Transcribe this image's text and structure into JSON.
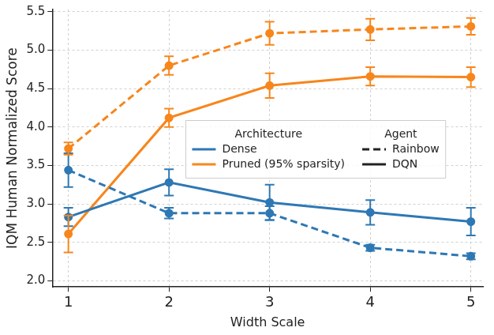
{
  "chart_data": {
    "type": "line",
    "x_label": "Width Scale",
    "y_label": "IQM Human Normalized Score",
    "x": [
      1,
      2,
      3,
      4,
      5
    ],
    "xlim": [
      0.84,
      5.12
    ],
    "xticks": [
      1,
      2,
      3,
      4,
      5
    ],
    "ylim": [
      1.92,
      5.53
    ],
    "yticks": [
      {
        "value": 2,
        "label": "2.0"
      },
      {
        "value": 2.5,
        "label": "2.5"
      },
      {
        "value": 3,
        "label": "3.0"
      },
      {
        "value": 3.5,
        "label": "3.5"
      },
      {
        "value": 4,
        "label": "4.0"
      },
      {
        "value": 4.5,
        "label": "4.5"
      },
      {
        "value": 5,
        "label": "5.0"
      },
      {
        "value": 5.5,
        "label": "5.5"
      }
    ],
    "grid": true,
    "legend": "center",
    "legend_titles": {
      "architecture": "Architecture",
      "agent": "Agent"
    },
    "series": [
      {
        "architecture": "Dense",
        "agent": "Rainbow",
        "color": "#2e78b4",
        "line_style": "dashed",
        "marker": "circle",
        "values": [
          3.44,
          2.88,
          2.88,
          2.43,
          2.32
        ],
        "errors": [
          0.22,
          0.07,
          0.09,
          0.04,
          0.04
        ]
      },
      {
        "architecture": "Dense",
        "agent": "DQN",
        "color": "#2e78b4",
        "line_style": "solid",
        "marker": "circle",
        "values": [
          2.83,
          3.28,
          3.02,
          2.89,
          2.77
        ],
        "errors": [
          0.12,
          0.17,
          0.23,
          0.16,
          0.18
        ]
      },
      {
        "architecture": "Pruned (95% sparsity)",
        "agent": "Rainbow",
        "color": "#f7861c",
        "line_style": "dashed",
        "marker": "circle",
        "values": [
          3.72,
          4.8,
          5.22,
          5.27,
          5.31
        ],
        "errors": [
          0.08,
          0.12,
          0.15,
          0.14,
          0.11
        ]
      },
      {
        "architecture": "Pruned (95% sparsity)",
        "agent": "DQN",
        "color": "#f7861c",
        "line_style": "solid",
        "marker": "circle",
        "values": [
          2.61,
          4.12,
          4.54,
          4.66,
          4.65
        ],
        "errors": [
          0.24,
          0.12,
          0.16,
          0.12,
          0.13
        ]
      }
    ]
  }
}
